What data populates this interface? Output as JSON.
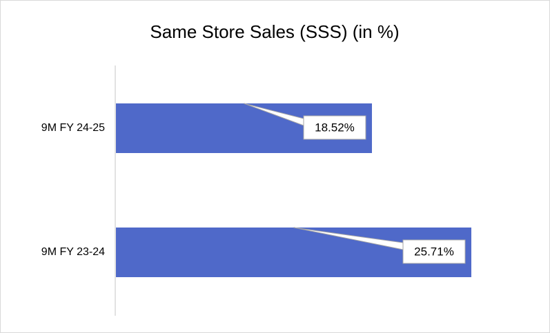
{
  "chart_data": {
    "type": "bar",
    "orientation": "horizontal",
    "title": "Same Store Sales (SSS) (in %)",
    "categories": [
      "9M FY 24-25",
      "9M FY 23-24"
    ],
    "values": [
      18.52,
      25.71
    ],
    "value_labels": [
      "18.52%",
      "25.71%"
    ],
    "color": "#4f69c9"
  }
}
